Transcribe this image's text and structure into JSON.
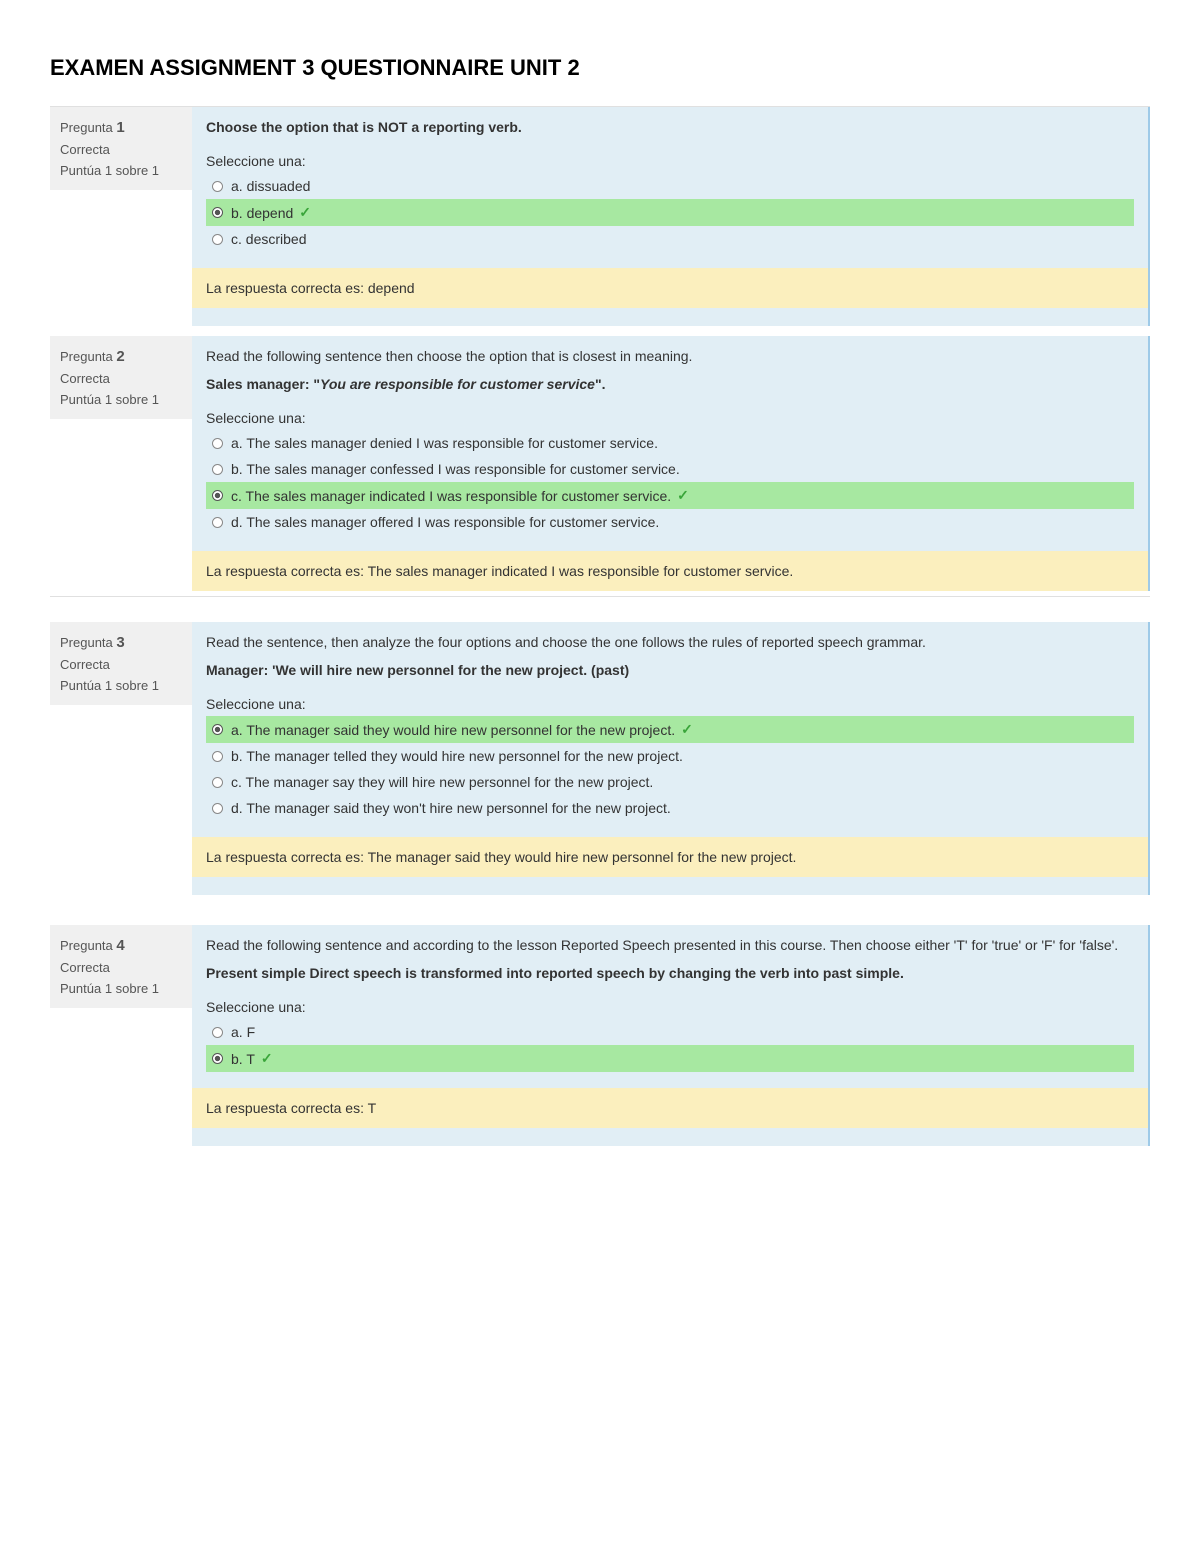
{
  "page": {
    "title": "EXAMEN ASSIGNMENT 3 QUESTIONNAIRE UNIT 2",
    "select_label": "Seleccione una:",
    "question_label": "Pregunta",
    "colors": {
      "page_bg": "#ffffff",
      "info_bg": "#f0f0f0",
      "content_bg": "#e1eef5",
      "content_border_right": "#9ecae8",
      "selected_bg": "#a7e8a1",
      "feedback_bg": "#fbefbe",
      "divider": "#e0e0e0",
      "check_color": "#3aa53a"
    }
  },
  "questions": [
    {
      "number": "1",
      "status": "Correcta",
      "score": "Puntúa 1 sobre 1",
      "prompt_bold": "Choose the option that is NOT a reporting verb.",
      "options": [
        {
          "label": "a. dissuaded",
          "selected": false
        },
        {
          "label": "b. depend",
          "selected": true
        },
        {
          "label": "c. described",
          "selected": false
        }
      ],
      "feedback": "La respuesta correcta es: depend"
    },
    {
      "number": "2",
      "status": "Correcta",
      "score": "Puntúa 1 sobre 1",
      "prompt_plain": "Read the following sentence then choose the option that is closest in meaning.",
      "bold_line_prefix": "Sales manager: \"",
      "bold_line_italic": "You are responsible for customer service",
      "bold_line_suffix": "\".",
      "options": [
        {
          "label": "a. The sales manager denied I was responsible for customer service.",
          "selected": false
        },
        {
          "label": "b. The sales manager confessed I was responsible for customer service.",
          "selected": false
        },
        {
          "label": "c. The sales manager indicated I was responsible for customer service.",
          "selected": true
        },
        {
          "label": "d. The sales manager offered I was responsible for customer service.",
          "selected": false
        }
      ],
      "feedback": "La respuesta correcta es: The sales manager indicated I was responsible for customer service."
    },
    {
      "number": "3",
      "status": "Correcta",
      "score": "Puntúa 1 sobre 1",
      "prompt_plain": "Read the sentence, then analyze the four options and choose the one follows the rules of reported speech grammar.",
      "bold_line": "Manager: 'We will hire new personnel for the new project. (past)",
      "options": [
        {
          "label": "a. The manager said they would hire new personnel for the new project.",
          "selected": true
        },
        {
          "label": "b. The manager telled they would hire new personnel for the new project.",
          "selected": false
        },
        {
          "label": "c. The manager say they will hire new personnel for the new project.",
          "selected": false
        },
        {
          "label": "d. The manager said they won't hire new personnel for the new project.",
          "selected": false
        }
      ],
      "feedback": "La respuesta correcta es: The manager said they would hire new personnel for the new project."
    },
    {
      "number": "4",
      "status": "Correcta",
      "score": "Puntúa 1 sobre 1",
      "prompt_plain": "Read the following sentence and according to the lesson Reported Speech presented in this course. Then choose either 'T' for 'true' or 'F' for 'false'.",
      "bold_line": "Present simple Direct speech is transformed into reported speech by changing the verb into past simple.",
      "options": [
        {
          "label": "a. F",
          "selected": false
        },
        {
          "label": "b. T",
          "selected": true
        }
      ],
      "feedback": "La respuesta correcta es: T"
    }
  ]
}
